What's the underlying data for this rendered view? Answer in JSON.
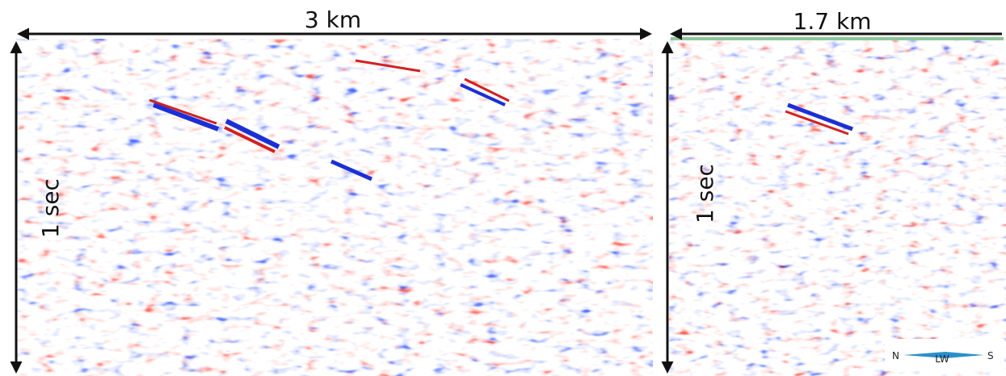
{
  "panels": [
    {
      "width_label": "3 km",
      "height_label": "1 sec"
    },
    {
      "width_label": "1.7 km",
      "height_label": "1 sec"
    }
  ],
  "compass": {
    "left": "N",
    "center": "LW",
    "right": "S"
  }
}
